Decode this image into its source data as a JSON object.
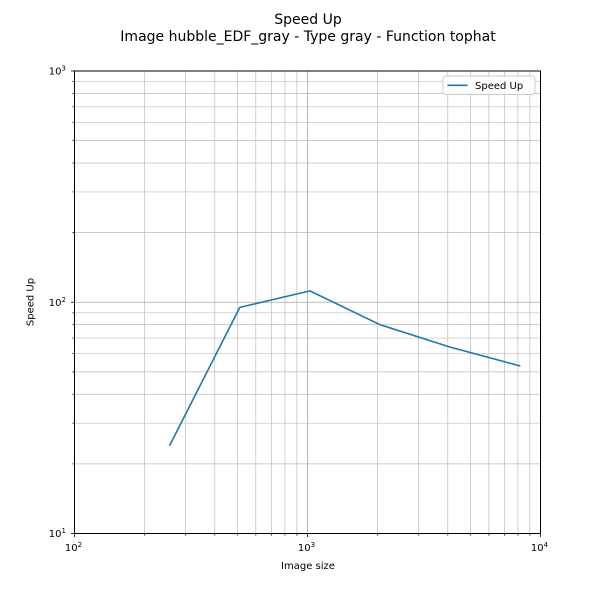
{
  "title": {
    "line1": "Speed Up",
    "line2": "Image hubble_EDF_gray - Type gray - Function tophat"
  },
  "axes": {
    "xlabel": "Image size",
    "ylabel": "Speed Up"
  },
  "legend": {
    "label": "Speed Up",
    "position": "upper right"
  },
  "chart_data": {
    "type": "line",
    "title": "Speed Up",
    "subtitle": "Image hubble_EDF_gray - Type gray - Function tophat",
    "xlabel": "Image size",
    "ylabel": "Speed Up",
    "xscale": "log",
    "yscale": "log",
    "xlim": [
      100,
      10000
    ],
    "ylim": [
      10,
      1000
    ],
    "x_tick_exponents": [
      2,
      3,
      4
    ],
    "y_tick_exponents": [
      1,
      2,
      3
    ],
    "grid": "both major and minor log gridlines",
    "legend_position": "upper right",
    "series": [
      {
        "name": "Speed Up",
        "color": "#1f77b4",
        "x": [
          256,
          512,
          1024,
          2048,
          4096,
          8192
        ],
        "y": [
          24,
          95,
          112,
          80,
          64,
          53
        ]
      }
    ]
  },
  "colors": {
    "line": "#1f77b4",
    "grid_major": "#a8a8a8",
    "grid_minor": "#bcbcbc",
    "spine": "#000000",
    "tick": "#000000",
    "legend_border": "#cccccc",
    "legend_fill": "#ffffff",
    "text": "#000000"
  }
}
